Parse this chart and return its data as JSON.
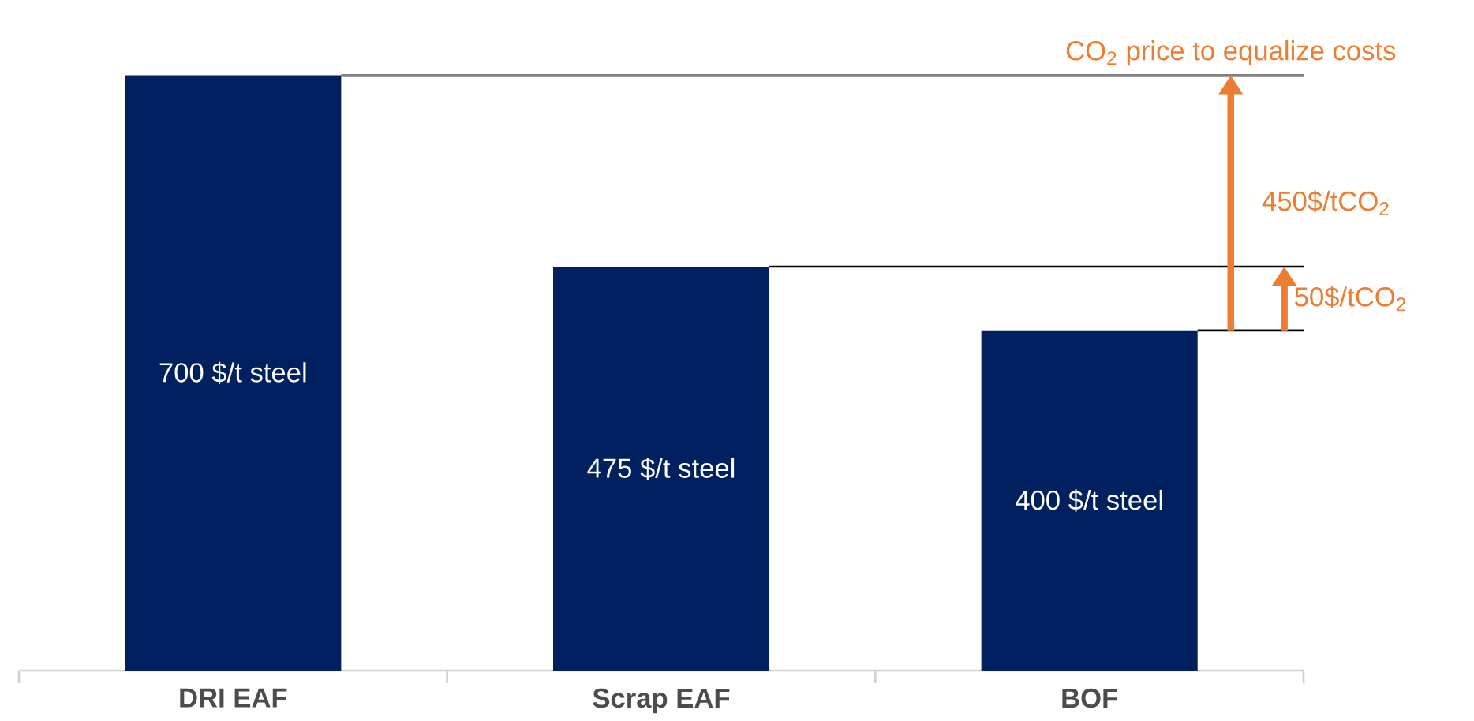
{
  "chart_data": {
    "type": "bar",
    "categories": [
      "DRI EAF",
      "Scrap EAF",
      "BOF"
    ],
    "values": [
      700,
      475,
      400
    ],
    "color": "#002060",
    "value_labels": [
      "700 $/t steel",
      "475 $/t steel",
      "400 $/t steel"
    ],
    "ref_lines": [
      {
        "axis": "y",
        "value": 700,
        "color": "#808080"
      },
      {
        "axis": "y",
        "value": 475,
        "color": "#000000"
      },
      {
        "axis": "y",
        "value": 400,
        "color": "#000000"
      }
    ],
    "annotations": [
      "CO$_{2}$ price to equalize costs",
      "450$/tCO$_{2}$",
      "50$/tCO$_{2}$"
    ]
  }
}
